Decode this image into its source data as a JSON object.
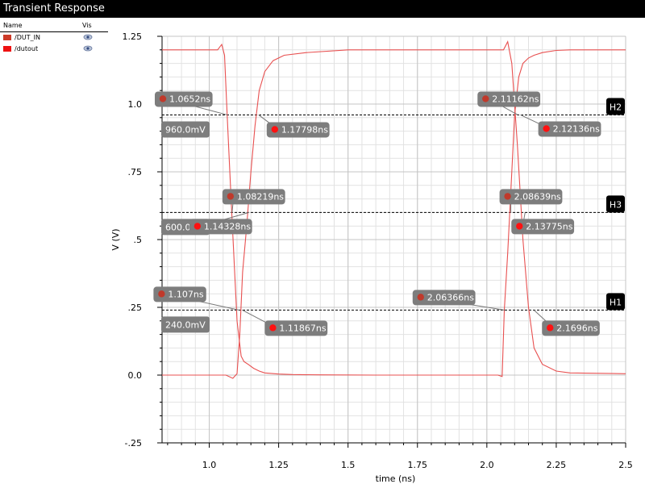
{
  "window": {
    "title": "Transient Response"
  },
  "legend": {
    "col_name": "Name",
    "col_vis": "Vis",
    "items": [
      {
        "name": "/DUT_IN",
        "color": "#cc3a28",
        "vis_icon": "eye-icon"
      },
      {
        "name": "/dutout",
        "color": "#ee1111",
        "vis_icon": "eye-icon"
      }
    ]
  },
  "chart_data": {
    "type": "line",
    "xlabel": "time (ns)",
    "ylabel": "V (V)",
    "xlim": [
      0.83,
      2.5
    ],
    "ylim": [
      -0.25,
      1.25
    ],
    "x_ticks": [
      "1.0",
      "1.25",
      "1.5",
      "1.75",
      "2.0",
      "2.25",
      "2.5"
    ],
    "x_tick_values": [
      1.0,
      1.25,
      1.5,
      1.75,
      2.0,
      2.25,
      2.5
    ],
    "y_ticks": [
      "1.25",
      "1.0",
      ".75",
      ".5",
      ".25",
      "0.0",
      "-.25"
    ],
    "y_tick_values": [
      1.25,
      1.0,
      0.75,
      0.5,
      0.25,
      0.0,
      -0.25
    ],
    "grid": true,
    "series": [
      {
        "name": "/DUT_IN",
        "color": "#e85050",
        "x": [
          0.83,
          1.0,
          1.03,
          1.045,
          1.055,
          1.065,
          1.08,
          1.1,
          1.115,
          1.125,
          1.14,
          1.16,
          1.18,
          1.2,
          1.25,
          1.3,
          1.4,
          1.6,
          1.8,
          2.0,
          2.04,
          2.055,
          2.063,
          2.075,
          2.09,
          2.1,
          2.115,
          2.13,
          2.15,
          2.17,
          2.2,
          2.25,
          2.3,
          2.5
        ],
        "y": [
          1.2,
          1.2,
          1.2,
          1.22,
          1.18,
          0.95,
          0.62,
          0.2,
          0.07,
          0.05,
          0.04,
          0.025,
          0.015,
          0.008,
          0.004,
          0.002,
          0.001,
          0.0,
          0.0,
          0.0,
          0.0,
          -0.005,
          0.24,
          0.45,
          0.75,
          0.96,
          1.1,
          1.15,
          1.17,
          1.18,
          1.19,
          1.198,
          1.2,
          1.2
        ]
      },
      {
        "name": "/dutout",
        "color": "#e85050",
        "x": [
          0.83,
          1.0,
          1.06,
          1.085,
          1.1,
          1.11,
          1.12,
          1.135,
          1.15,
          1.165,
          1.18,
          1.2,
          1.23,
          1.27,
          1.35,
          1.5,
          1.7,
          2.0,
          2.06,
          2.075,
          2.09,
          2.11,
          2.13,
          2.15,
          2.17,
          2.2,
          2.25,
          2.3,
          2.5
        ],
        "y": [
          0.0,
          0.0,
          0.0,
          -0.012,
          0.005,
          0.15,
          0.38,
          0.55,
          0.75,
          0.92,
          1.05,
          1.12,
          1.16,
          1.18,
          1.19,
          1.2,
          1.2,
          1.2,
          1.2,
          1.23,
          1.15,
          0.85,
          0.5,
          0.25,
          0.1,
          0.04,
          0.015,
          0.008,
          0.005
        ]
      }
    ],
    "hlines": [
      {
        "label": "H2",
        "y": 0.96,
        "value_text": "960.0mV"
      },
      {
        "label": "H3",
        "y": 0.6,
        "value_text": "600.0mV"
      },
      {
        "label": "H1",
        "y": 0.24,
        "value_text": "240.0mV"
      }
    ],
    "markers": [
      {
        "text": "1.0652ns",
        "x": 1.0652,
        "y": 0.96,
        "style": "in"
      },
      {
        "text": "1.17798ns",
        "x": 1.17798,
        "y": 0.96,
        "style": "out"
      },
      {
        "text": "1.08219ns",
        "x": 1.08219,
        "y": 0.6,
        "style": "in"
      },
      {
        "text": "1.14328ns",
        "x": 1.14328,
        "y": 0.6,
        "style": "out"
      },
      {
        "text": "1.107ns",
        "x": 1.107,
        "y": 0.24,
        "style": "in"
      },
      {
        "text": "1.11867ns",
        "x": 1.11867,
        "y": 0.24,
        "style": "out"
      },
      {
        "text": "2.11162ns",
        "x": 2.11162,
        "y": 0.96,
        "style": "in"
      },
      {
        "text": "2.12136ns",
        "x": 2.12136,
        "y": 0.96,
        "style": "out"
      },
      {
        "text": "2.08639ns",
        "x": 2.08639,
        "y": 0.6,
        "style": "in"
      },
      {
        "text": "2.13775ns",
        "x": 2.13775,
        "y": 0.6,
        "style": "out"
      },
      {
        "text": "2.06366ns",
        "x": 2.06366,
        "y": 0.24,
        "style": "in"
      },
      {
        "text": "2.1696ns",
        "x": 2.1696,
        "y": 0.24,
        "style": "out"
      }
    ]
  }
}
